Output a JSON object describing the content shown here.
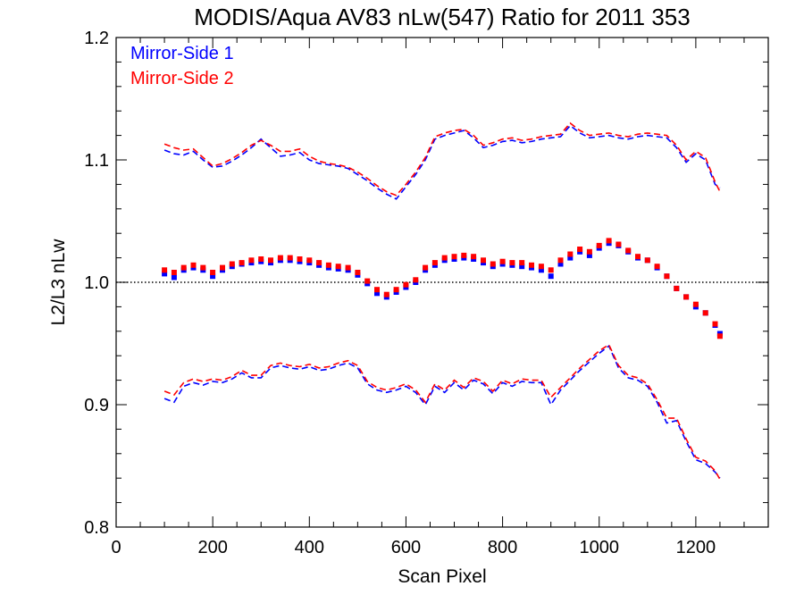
{
  "chart_data": {
    "type": "scatter",
    "title": "MODIS/Aqua AV83 nLw(547) Ratio for 2011 353",
    "xlabel": "Scan Pixel",
    "ylabel": "L2/L3 nLw",
    "xlim": [
      0,
      1350
    ],
    "ylim": [
      0.8,
      1.2
    ],
    "x_ticks": [
      0,
      200,
      400,
      600,
      800,
      1000,
      1200
    ],
    "y_ticks": [
      0.8,
      0.9,
      1.0,
      1.1,
      1.2
    ],
    "x_tick_labels": [
      "0",
      "200",
      "400",
      "600",
      "800",
      "1000",
      "1200"
    ],
    "y_tick_labels": [
      "0.8",
      "0.9",
      "1.0",
      "1.1",
      "1.2"
    ],
    "reference_line": {
      "y": 1.0,
      "style": "dotted"
    },
    "legend_placement": "top-left",
    "colors": {
      "ms1": "#0000ff",
      "ms2": "#ff0000",
      "frame": "#000000"
    },
    "series": [
      {
        "name": "Mirror-Side 1",
        "kind": "points",
        "x": [
          100,
          120,
          140,
          160,
          180,
          200,
          220,
          240,
          260,
          280,
          300,
          320,
          340,
          360,
          380,
          400,
          420,
          440,
          460,
          480,
          500,
          520,
          540,
          560,
          580,
          600,
          620,
          640,
          660,
          680,
          700,
          720,
          740,
          760,
          780,
          800,
          820,
          840,
          860,
          880,
          900,
          920,
          940,
          960,
          980,
          1000,
          1020,
          1040,
          1060,
          1080,
          1100,
          1120,
          1140,
          1160,
          1180,
          1200,
          1220,
          1240,
          1250
        ],
        "y": [
          1.007,
          1.004,
          1.01,
          1.012,
          1.01,
          1.005,
          1.01,
          1.013,
          1.015,
          1.016,
          1.017,
          1.016,
          1.018,
          1.018,
          1.017,
          1.016,
          1.014,
          1.012,
          1.011,
          1.01,
          1.006,
          0.999,
          0.991,
          0.988,
          0.992,
          0.996,
          1.0,
          1.01,
          1.014,
          1.018,
          1.019,
          1.02,
          1.019,
          1.016,
          1.013,
          1.015,
          1.014,
          1.013,
          1.012,
          1.01,
          1.005,
          1.015,
          1.02,
          1.025,
          1.022,
          1.028,
          1.032,
          1.03,
          1.025,
          1.02,
          1.018,
          1.012,
          1.005,
          0.995,
          0.988,
          0.98,
          0.975,
          0.965,
          0.958
        ]
      },
      {
        "name": "Mirror-Side 2",
        "kind": "points",
        "x": [
          100,
          120,
          140,
          160,
          180,
          200,
          220,
          240,
          260,
          280,
          300,
          320,
          340,
          360,
          380,
          400,
          420,
          440,
          460,
          480,
          500,
          520,
          540,
          560,
          580,
          600,
          620,
          640,
          660,
          680,
          700,
          720,
          740,
          760,
          780,
          800,
          820,
          840,
          860,
          880,
          900,
          920,
          940,
          960,
          980,
          1000,
          1020,
          1040,
          1060,
          1080,
          1100,
          1120,
          1140,
          1160,
          1180,
          1200,
          1220,
          1240,
          1250
        ],
        "y": [
          1.01,
          1.008,
          1.012,
          1.014,
          1.012,
          1.008,
          1.012,
          1.015,
          1.016,
          1.018,
          1.019,
          1.018,
          1.02,
          1.02,
          1.019,
          1.018,
          1.016,
          1.014,
          1.013,
          1.012,
          1.008,
          1.001,
          0.994,
          0.99,
          0.994,
          0.998,
          1.002,
          1.012,
          1.016,
          1.02,
          1.021,
          1.022,
          1.021,
          1.018,
          1.015,
          1.017,
          1.016,
          1.016,
          1.014,
          1.013,
          1.01,
          1.018,
          1.023,
          1.027,
          1.025,
          1.03,
          1.034,
          1.031,
          1.026,
          1.021,
          1.018,
          1.013,
          1.005,
          0.995,
          0.988,
          0.982,
          0.975,
          0.966,
          0.956
        ]
      },
      {
        "name": "Mirror-Side 1 upper",
        "kind": "dashed-line",
        "x": [
          100,
          120,
          140,
          160,
          180,
          200,
          220,
          240,
          260,
          280,
          300,
          320,
          340,
          360,
          380,
          400,
          420,
          440,
          460,
          480,
          500,
          520,
          540,
          560,
          580,
          600,
          620,
          640,
          660,
          680,
          700,
          720,
          740,
          760,
          780,
          800,
          820,
          840,
          860,
          880,
          900,
          920,
          940,
          960,
          980,
          1000,
          1020,
          1040,
          1060,
          1080,
          1100,
          1120,
          1140,
          1160,
          1180,
          1200,
          1220,
          1240,
          1250
        ],
        "y": [
          1.108,
          1.105,
          1.104,
          1.107,
          1.1,
          1.094,
          1.095,
          1.099,
          1.104,
          1.11,
          1.117,
          1.11,
          1.103,
          1.104,
          1.106,
          1.1,
          1.097,
          1.096,
          1.095,
          1.093,
          1.088,
          1.083,
          1.077,
          1.072,
          1.068,
          1.078,
          1.088,
          1.1,
          1.117,
          1.12,
          1.122,
          1.124,
          1.118,
          1.11,
          1.112,
          1.115,
          1.116,
          1.114,
          1.115,
          1.117,
          1.118,
          1.119,
          1.128,
          1.122,
          1.118,
          1.119,
          1.12,
          1.118,
          1.117,
          1.119,
          1.12,
          1.119,
          1.118,
          1.11,
          1.098,
          1.105,
          1.1,
          1.08,
          1.077
        ]
      },
      {
        "name": "Mirror-Side 2 upper",
        "kind": "dashed-line",
        "x": [
          100,
          120,
          140,
          160,
          180,
          200,
          220,
          240,
          260,
          280,
          300,
          320,
          340,
          360,
          380,
          400,
          420,
          440,
          460,
          480,
          500,
          520,
          540,
          560,
          580,
          600,
          620,
          640,
          660,
          680,
          700,
          720,
          740,
          760,
          780,
          800,
          820,
          840,
          860,
          880,
          900,
          920,
          940,
          960,
          980,
          1000,
          1020,
          1040,
          1060,
          1080,
          1100,
          1120,
          1140,
          1160,
          1180,
          1200,
          1220,
          1240,
          1250
        ],
        "y": [
          1.113,
          1.11,
          1.108,
          1.109,
          1.102,
          1.095,
          1.097,
          1.101,
          1.106,
          1.112,
          1.116,
          1.112,
          1.107,
          1.107,
          1.109,
          1.103,
          1.099,
          1.097,
          1.096,
          1.094,
          1.09,
          1.085,
          1.079,
          1.074,
          1.071,
          1.08,
          1.09,
          1.102,
          1.119,
          1.122,
          1.124,
          1.125,
          1.12,
          1.112,
          1.114,
          1.117,
          1.118,
          1.116,
          1.117,
          1.119,
          1.12,
          1.121,
          1.13,
          1.124,
          1.12,
          1.121,
          1.122,
          1.12,
          1.119,
          1.121,
          1.122,
          1.121,
          1.12,
          1.112,
          1.1,
          1.107,
          1.102,
          1.082,
          1.074
        ]
      },
      {
        "name": "Mirror-Side 1 lower",
        "kind": "dashed-line",
        "x": [
          100,
          120,
          140,
          160,
          180,
          200,
          220,
          240,
          260,
          280,
          300,
          320,
          340,
          360,
          380,
          400,
          420,
          440,
          460,
          480,
          500,
          520,
          540,
          560,
          580,
          600,
          620,
          640,
          660,
          680,
          700,
          720,
          740,
          760,
          780,
          800,
          820,
          840,
          860,
          880,
          900,
          920,
          940,
          960,
          980,
          1000,
          1020,
          1040,
          1060,
          1080,
          1100,
          1120,
          1140,
          1160,
          1180,
          1200,
          1220,
          1240,
          1250
        ],
        "y": [
          0.905,
          0.902,
          0.915,
          0.918,
          0.916,
          0.919,
          0.918,
          0.921,
          0.926,
          0.922,
          0.922,
          0.93,
          0.932,
          0.93,
          0.929,
          0.931,
          0.928,
          0.929,
          0.932,
          0.934,
          0.93,
          0.917,
          0.912,
          0.91,
          0.912,
          0.915,
          0.91,
          0.9,
          0.915,
          0.91,
          0.918,
          0.912,
          0.92,
          0.917,
          0.909,
          0.918,
          0.915,
          0.919,
          0.918,
          0.918,
          0.9,
          0.912,
          0.92,
          0.928,
          0.935,
          0.942,
          0.948,
          0.93,
          0.922,
          0.92,
          0.915,
          0.902,
          0.885,
          0.887,
          0.87,
          0.855,
          0.852,
          0.845,
          0.84
        ]
      },
      {
        "name": "Mirror-Side 2 lower",
        "kind": "dashed-line",
        "x": [
          100,
          120,
          140,
          160,
          180,
          200,
          220,
          240,
          260,
          280,
          300,
          320,
          340,
          360,
          380,
          400,
          420,
          440,
          460,
          480,
          500,
          520,
          540,
          560,
          580,
          600,
          620,
          640,
          660,
          680,
          700,
          720,
          740,
          760,
          780,
          800,
          820,
          840,
          860,
          880,
          900,
          920,
          940,
          960,
          980,
          1000,
          1020,
          1040,
          1060,
          1080,
          1100,
          1120,
          1140,
          1160,
          1180,
          1200,
          1220,
          1240,
          1250
        ],
        "y": [
          0.911,
          0.908,
          0.918,
          0.921,
          0.919,
          0.921,
          0.92,
          0.923,
          0.928,
          0.924,
          0.924,
          0.932,
          0.934,
          0.932,
          0.931,
          0.933,
          0.93,
          0.931,
          0.934,
          0.936,
          0.932,
          0.919,
          0.914,
          0.912,
          0.914,
          0.917,
          0.912,
          0.902,
          0.917,
          0.912,
          0.92,
          0.914,
          0.922,
          0.919,
          0.911,
          0.92,
          0.917,
          0.921,
          0.92,
          0.92,
          0.906,
          0.914,
          0.922,
          0.93,
          0.937,
          0.944,
          0.949,
          0.932,
          0.924,
          0.922,
          0.917,
          0.904,
          0.889,
          0.889,
          0.872,
          0.857,
          0.854,
          0.846,
          0.839
        ]
      }
    ]
  }
}
